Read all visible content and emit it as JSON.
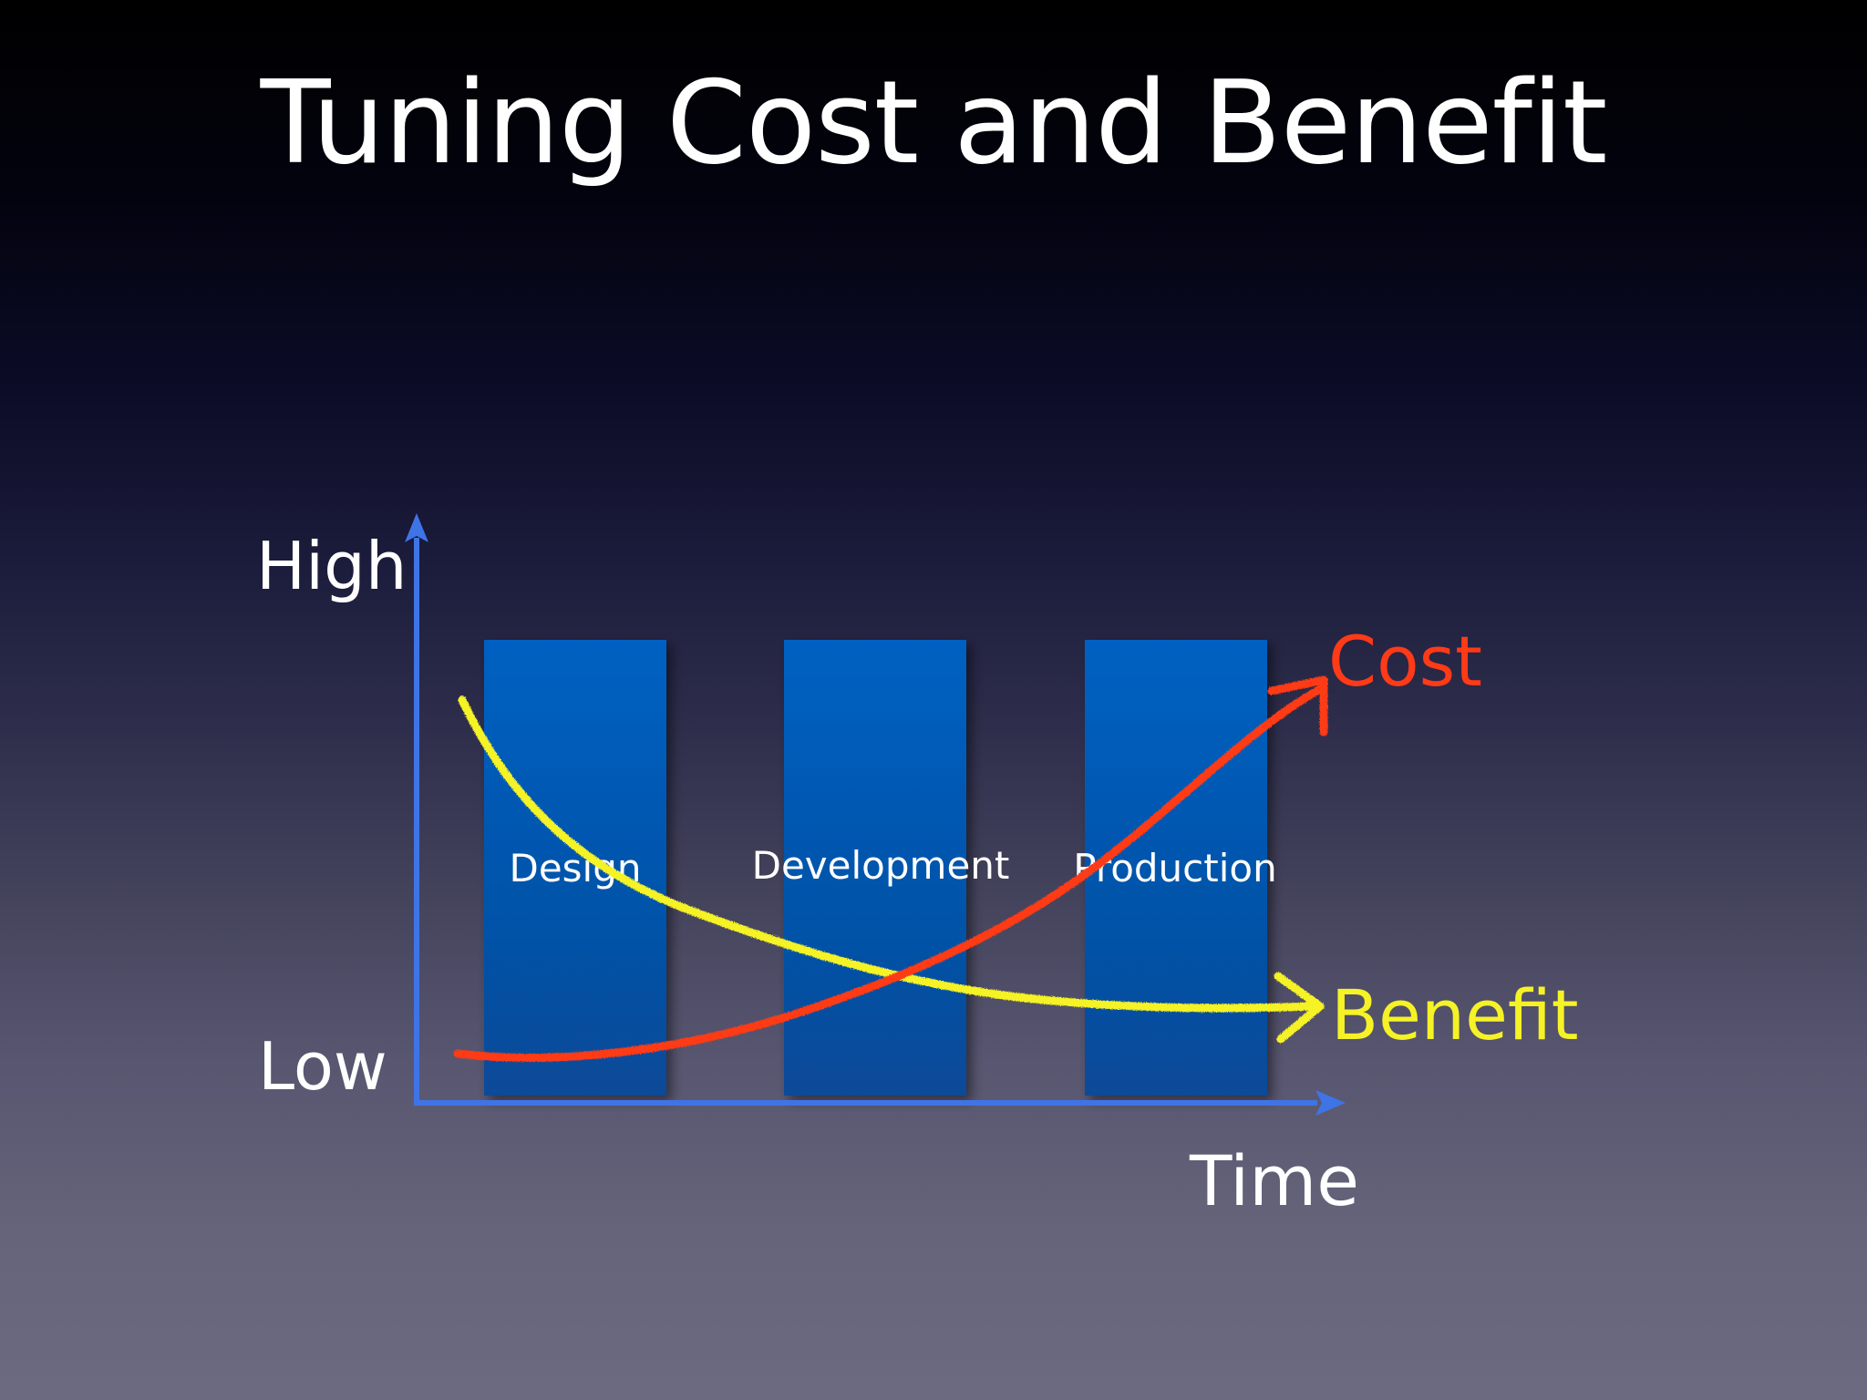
{
  "title": "Tuning Cost and Benefit",
  "axis": {
    "y_high": "High",
    "y_low": "Low",
    "x_label": "Time",
    "color": "#3f74e6"
  },
  "phases": [
    {
      "label": "Design"
    },
    {
      "label": "Development"
    },
    {
      "label": "Production"
    }
  ],
  "phase_color_top": "#0461c2",
  "phase_color_bottom": "#074a98",
  "curves": {
    "cost": {
      "label": "Cost",
      "color": "#ff3a17"
    },
    "benefit": {
      "label": "Benefit",
      "color": "#f5f226"
    }
  }
}
